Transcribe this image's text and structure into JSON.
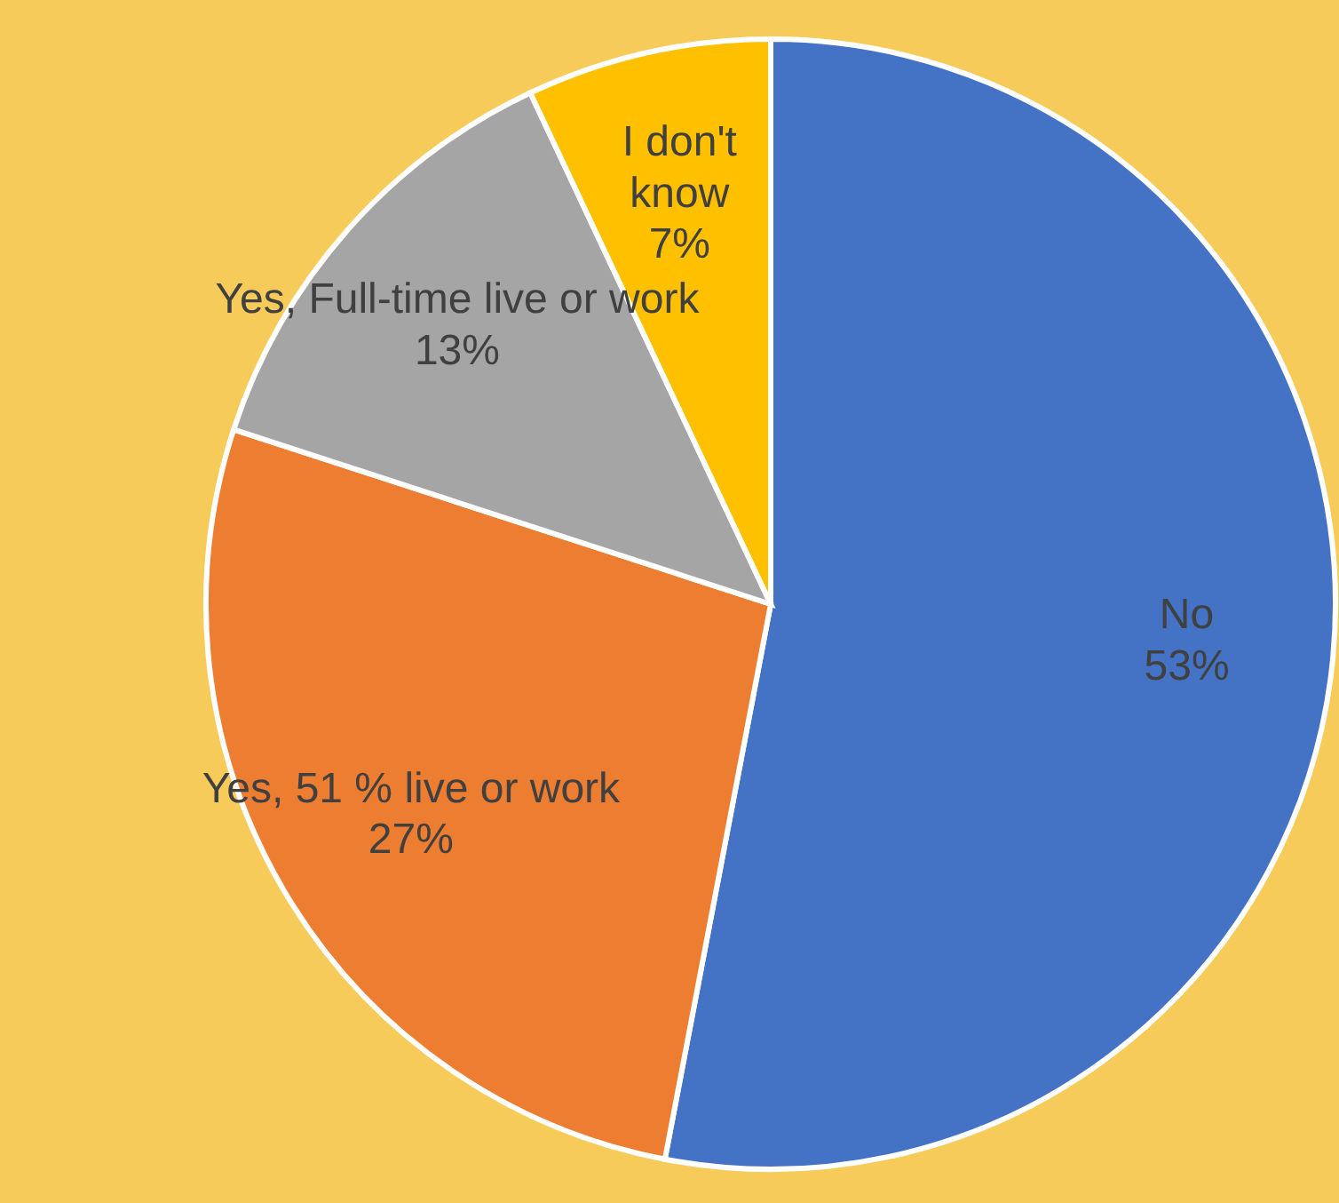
{
  "chart_data": {
    "type": "pie",
    "categories": [
      "No",
      "Yes, 51 % live or work",
      "Yes, Full-time live or work",
      "I don't know"
    ],
    "values": [
      53,
      27,
      13,
      7
    ],
    "value_labels": [
      "53%",
      "27%",
      "13%",
      "7%"
    ],
    "colors": [
      "#4472c4",
      "#ed7d31",
      "#a5a5a5",
      "#ffc000"
    ]
  }
}
